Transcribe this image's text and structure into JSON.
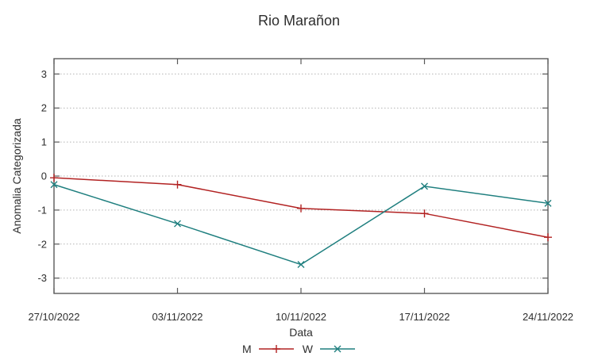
{
  "chart_data": {
    "type": "line",
    "title": "Rio Marañon",
    "xlabel": "Data",
    "ylabel": "Anomalia Categorizada",
    "categories": [
      "27/10/2022",
      "03/11/2022",
      "10/11/2022",
      "17/11/2022",
      "24/11/2022"
    ],
    "series": [
      {
        "name": "M",
        "marker": "plus",
        "color": "#b22222",
        "values": [
          -0.05,
          -0.25,
          -0.95,
          -1.1,
          -1.8
        ]
      },
      {
        "name": "W",
        "marker": "cross",
        "color": "#1f7f7f",
        "values": [
          -0.25,
          -1.4,
          -2.6,
          -0.3,
          -0.8
        ]
      }
    ],
    "yticks": [
      3,
      2,
      1,
      0,
      -1,
      -2,
      -3
    ],
    "ylim": [
      -3.45,
      3.45
    ],
    "grid": "horizontal-dotted",
    "legend_position": "bottom-center",
    "colors": {
      "series_m": "#b22222",
      "series_w": "#1f7f7f",
      "border": "#5a5a5a",
      "grid": "#b3b3b3",
      "text": "#2e2e2e"
    }
  }
}
